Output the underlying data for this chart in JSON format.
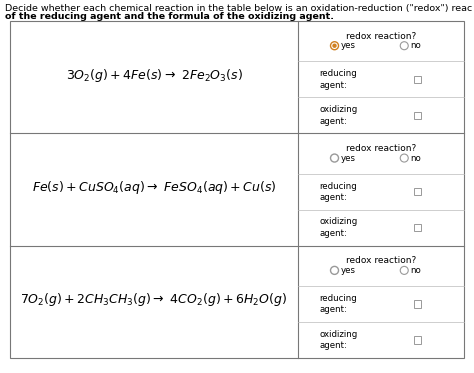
{
  "title_line1": "Decide whether each chemical reaction in the table below is an oxidation-reduction (\"redox\") reac",
  "title_line2": "of the reducing agent and the formula of the oxidizing agent.",
  "equations": [
    "3O$_2$(ℹ) + 4Fe(ₛ) →  2Fe$_2$O$_3$(ₛ)",
    "Fe(ₛ) + CuSO$_4$(ᵃᵠ) →  FeSO$_4$(ᵃᵠ) + Cu(ₛ)",
    "7O$_2$(ℹ) + 2CH$_3$CH$_3$(ℹ) →  4CO$_2$(ℹ) + 6H$_2$O(ℹ)"
  ],
  "bg_color": "#ffffff",
  "row1_yes_filled": true,
  "row2_yes_filled": false,
  "row3_yes_filled": false,
  "fig_width": 4.74,
  "fig_height": 3.73,
  "dpi": 100
}
